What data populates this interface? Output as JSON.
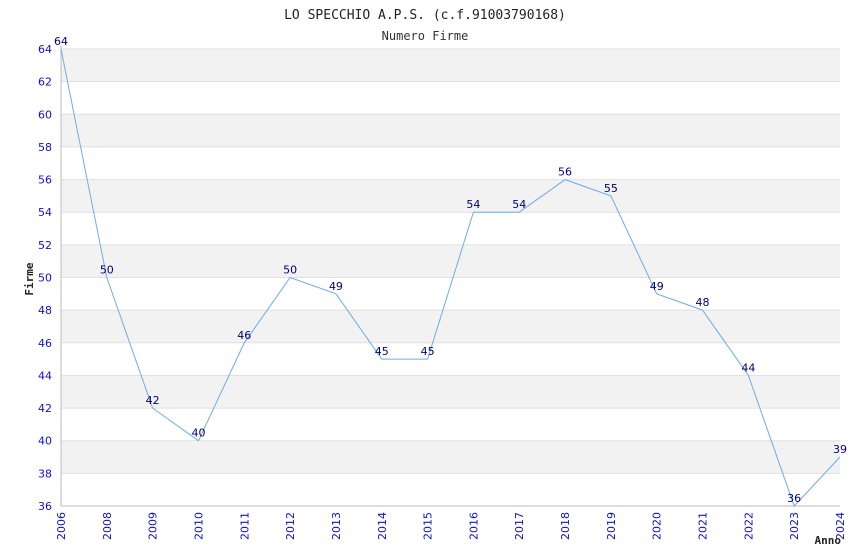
{
  "chart_data": {
    "type": "line",
    "title": "LO SPECCHIO A.P.S. (c.f.91003790168)",
    "subtitle": "Numero Firme",
    "xlabel": "Anno",
    "ylabel": "Firme",
    "categories": [
      "2006",
      "2008",
      "2009",
      "2010",
      "2011",
      "2012",
      "2013",
      "2014",
      "2015",
      "2016",
      "2017",
      "2018",
      "2019",
      "2020",
      "2021",
      "2022",
      "2023",
      "2024"
    ],
    "values": [
      64,
      50,
      42,
      40,
      46,
      50,
      49,
      45,
      45,
      54,
      54,
      56,
      55,
      49,
      48,
      44,
      36,
      39
    ],
    "ylim": [
      36,
      64
    ],
    "yticks": [
      36,
      38,
      40,
      42,
      44,
      46,
      48,
      50,
      52,
      54,
      56,
      58,
      60,
      62,
      64
    ],
    "grid": "horizontal bands",
    "colors": {
      "line": "#6aaeea",
      "band_shade": "#f2f2f2",
      "tick_text": "#1010d0",
      "data_label": "#00007a"
    }
  }
}
